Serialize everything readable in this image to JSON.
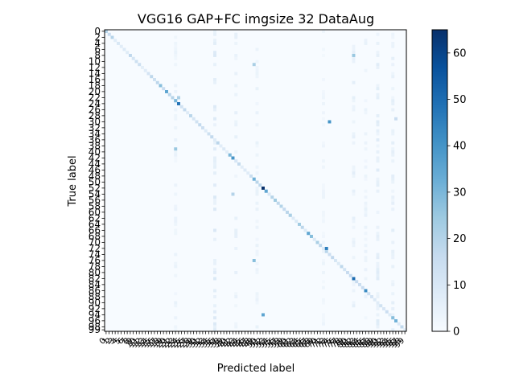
{
  "chart_data": {
    "type": "heatmap",
    "title": "VGG16 GAP+FC imgsize 32 DataAug",
    "xlabel": "Predicted label",
    "ylabel": "True label",
    "n_classes": 100,
    "x_ticks": [
      "0",
      "1",
      "2",
      "3",
      "4",
      "5",
      "6",
      "7",
      "8",
      "9",
      "10",
      "11",
      "12",
      "13",
      "14",
      "15",
      "16",
      "17",
      "18",
      "19",
      "20",
      "21",
      "22",
      "23",
      "24",
      "25",
      "26",
      "27",
      "28",
      "29",
      "30",
      "31",
      "32",
      "33",
      "34",
      "35",
      "36",
      "37",
      "38",
      "39",
      "40",
      "41",
      "42",
      "43",
      "44",
      "45",
      "46",
      "47",
      "48",
      "49",
      "50",
      "51",
      "52",
      "53",
      "54",
      "55",
      "56",
      "57",
      "58",
      "59",
      "60",
      "61",
      "62",
      "63",
      "64",
      "65",
      "66",
      "67",
      "68",
      "69",
      "70",
      "71",
      "72",
      "73",
      "74",
      "75",
      "76",
      "77",
      "78",
      "79",
      "80",
      "81",
      "82",
      "83",
      "84",
      "85",
      "86",
      "87",
      "88",
      "89",
      "90",
      "91",
      "92",
      "93",
      "94",
      "95",
      "96",
      "97",
      "98",
      "99"
    ],
    "y_ticks": [
      "0",
      "2",
      "4",
      "6",
      "8",
      "10",
      "12",
      "14",
      "16",
      "18",
      "20",
      "22",
      "24",
      "26",
      "28",
      "30",
      "32",
      "34",
      "36",
      "38",
      "40",
      "42",
      "44",
      "46",
      "48",
      "50",
      "52",
      "54",
      "56",
      "58",
      "60",
      "62",
      "64",
      "66",
      "68",
      "70",
      "72",
      "74",
      "76",
      "78",
      "80",
      "82",
      "84",
      "86",
      "88",
      "90",
      "92",
      "94",
      "96",
      "98",
      "99"
    ],
    "colorbar": {
      "min": 0,
      "max": 65,
      "ticks": [
        "0",
        "10",
        "20",
        "30",
        "40",
        "50",
        "60"
      ],
      "colormap": "Blues"
    },
    "highlighted_cells": [
      {
        "row": 0,
        "col": 0,
        "value": 20
      },
      {
        "row": 18,
        "col": 18,
        "value": 28
      },
      {
        "row": 20,
        "col": 20,
        "value": 35
      },
      {
        "row": 22,
        "col": 24,
        "value": 22
      },
      {
        "row": 23,
        "col": 23,
        "value": 30
      },
      {
        "row": 24,
        "col": 24,
        "value": 48
      },
      {
        "row": 30,
        "col": 74,
        "value": 40
      },
      {
        "row": 41,
        "col": 41,
        "value": 30
      },
      {
        "row": 42,
        "col": 42,
        "value": 40
      },
      {
        "row": 49,
        "col": 49,
        "value": 32
      },
      {
        "row": 52,
        "col": 52,
        "value": 65
      },
      {
        "row": 53,
        "col": 53,
        "value": 35
      },
      {
        "row": 56,
        "col": 56,
        "value": 24
      },
      {
        "row": 61,
        "col": 61,
        "value": 22
      },
      {
        "row": 64,
        "col": 64,
        "value": 24
      },
      {
        "row": 67,
        "col": 67,
        "value": 35
      },
      {
        "row": 68,
        "col": 68,
        "value": 28
      },
      {
        "row": 70,
        "col": 70,
        "value": 22
      },
      {
        "row": 72,
        "col": 73,
        "value": 45
      },
      {
        "row": 82,
        "col": 82,
        "value": 50
      },
      {
        "row": 86,
        "col": 86,
        "value": 42
      },
      {
        "row": 95,
        "col": 95,
        "value": 28
      },
      {
        "row": 96,
        "col": 96,
        "value": 32
      },
      {
        "row": 94,
        "col": 52,
        "value": 35
      },
      {
        "row": 76,
        "col": 49,
        "value": 28
      },
      {
        "row": 54,
        "col": 42,
        "value": 20
      },
      {
        "row": 8,
        "col": 82,
        "value": 25
      },
      {
        "row": 39,
        "col": 23,
        "value": 25
      },
      {
        "row": 11,
        "col": 49,
        "value": 22
      },
      {
        "row": 29,
        "col": 96,
        "value": 15
      }
    ],
    "light_columns": [
      {
        "col": 36,
        "value": 10
      },
      {
        "col": 43,
        "value": 6
      },
      {
        "col": 50,
        "value": 5
      },
      {
        "col": 82,
        "value": 7
      },
      {
        "col": 90,
        "value": 8
      },
      {
        "col": 95,
        "value": 7
      },
      {
        "col": 23,
        "value": 5
      },
      {
        "col": 86,
        "value": 5
      },
      {
        "col": 72,
        "value": 4
      }
    ]
  }
}
